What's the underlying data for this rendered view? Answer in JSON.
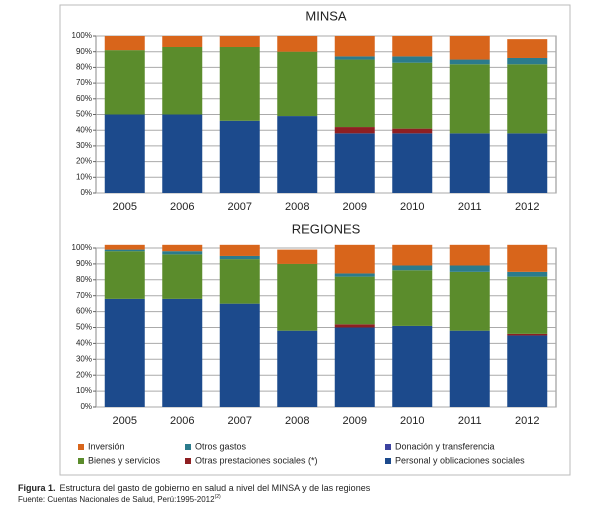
{
  "chart_data": [
    {
      "type": "stacked_bar",
      "title": "MINSA",
      "categories": [
        "2005",
        "2006",
        "2007",
        "2008",
        "2009",
        "2010",
        "2011",
        "2012"
      ],
      "ylim": [
        0,
        100
      ],
      "yticks": [
        {
          "value": 0,
          "label": "0%"
        },
        {
          "value": 10,
          "label": "10%"
        },
        {
          "value": 20,
          "label": "20%"
        },
        {
          "value": 30,
          "label": "30%"
        },
        {
          "value": 40,
          "label": "40%"
        },
        {
          "value": 50,
          "label": "50%"
        },
        {
          "value": 60,
          "label": "60%"
        },
        {
          "value": 70,
          "label": "70%"
        },
        {
          "value": 80,
          "label": "80%"
        },
        {
          "value": 90,
          "label": "90%"
        },
        {
          "value": 100,
          "label": "100%"
        }
      ],
      "grid": true,
      "series": [
        {
          "name": "Personal y oblicaciones sociales",
          "color": "#1c4a8c",
          "values": [
            50,
            50,
            46,
            49,
            38,
            38,
            38,
            38
          ]
        },
        {
          "name": "Otras prestaciones sociales (*)",
          "color": "#8e1f22",
          "values": [
            0,
            0,
            0,
            0,
            4,
            3,
            0,
            0
          ]
        },
        {
          "name": "Bienes y servicios",
          "color": "#5b8c2c",
          "values": [
            41,
            43,
            47,
            41,
            43,
            42,
            44,
            44
          ]
        },
        {
          "name": "Donación y transferencia",
          "color": "#3c42a0",
          "values": [
            0,
            0,
            0,
            0,
            0,
            0,
            0,
            0
          ]
        },
        {
          "name": "Otros gastos",
          "color": "#2b7b8c",
          "values": [
            0,
            0,
            0,
            0,
            2,
            4,
            3,
            4
          ]
        },
        {
          "name": "Inversión",
          "color": "#d8651b",
          "values": [
            9,
            7,
            7,
            10,
            13,
            13,
            15,
            12
          ]
        }
      ]
    },
    {
      "type": "stacked_bar",
      "title": "REGIONES",
      "categories": [
        "2005",
        "2006",
        "2007",
        "2008",
        "2009",
        "2010",
        "2011",
        "2012"
      ],
      "ylim": [
        0,
        100
      ],
      "yticks": [
        {
          "value": 0,
          "label": "0%"
        },
        {
          "value": 10,
          "label": "10%"
        },
        {
          "value": 20,
          "label": "20%"
        },
        {
          "value": 30,
          "label": "30%"
        },
        {
          "value": 40,
          "label": "40%"
        },
        {
          "value": 50,
          "label": "50%"
        },
        {
          "value": 60,
          "label": "60%"
        },
        {
          "value": 70,
          "label": "70%"
        },
        {
          "value": 80,
          "label": "80%"
        },
        {
          "value": 90,
          "label": "90%"
        },
        {
          "value": 100,
          "label": "100%"
        }
      ],
      "grid": true,
      "series": [
        {
          "name": "Personal y oblicaciones sociales",
          "color": "#1c4a8c",
          "values": [
            68,
            68,
            65,
            48,
            50,
            51,
            48,
            45
          ]
        },
        {
          "name": "Otras prestaciones sociales (*)",
          "color": "#8e1f22",
          "values": [
            0,
            0,
            0,
            0,
            2,
            0,
            0,
            1
          ]
        },
        {
          "name": "Bienes y servicios",
          "color": "#5b8c2c",
          "values": [
            30,
            28,
            28,
            42,
            30,
            35,
            37,
            36
          ]
        },
        {
          "name": "Donación y transferencia",
          "color": "#3c42a0",
          "values": [
            0,
            0,
            0,
            0,
            0,
            0,
            0,
            0
          ]
        },
        {
          "name": "Otros gastos",
          "color": "#2b7b8c",
          "values": [
            1,
            2,
            2,
            0,
            2,
            3,
            4,
            3
          ]
        },
        {
          "name": "Inversión",
          "color": "#d8651b",
          "values": [
            3,
            4,
            7,
            9,
            18,
            13,
            13,
            17
          ]
        }
      ]
    }
  ],
  "caption": {
    "label": "Figura 1.",
    "text": "Estructura del gasto de gobierno en salud a nivel del MINSA y de las regiones",
    "source": "Fuente: Cuentas Nacionales de Salud, Perú:1995-2012",
    "ref": "(2)"
  }
}
